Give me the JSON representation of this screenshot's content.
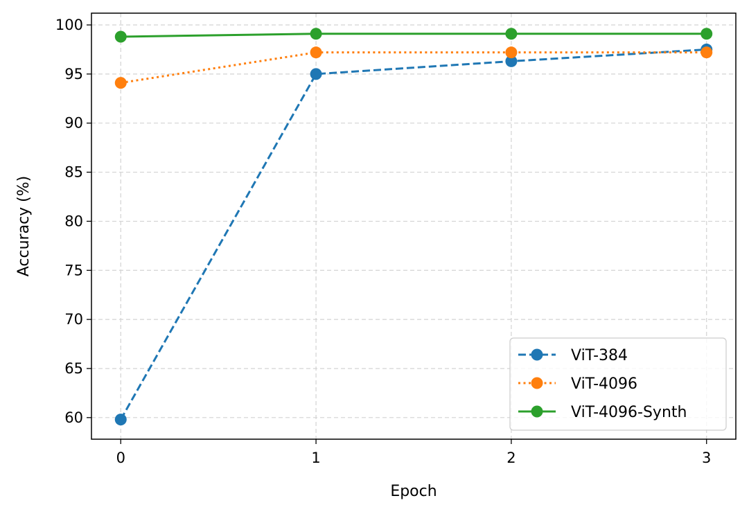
{
  "chart_data": {
    "type": "line",
    "xlabel": "Epoch",
    "ylabel": "Accuracy (%)",
    "x": [
      0,
      1,
      2,
      3
    ],
    "xticks": [
      0,
      1,
      2,
      3
    ],
    "yticks": [
      60,
      65,
      70,
      75,
      80,
      85,
      90,
      95,
      100
    ],
    "xlim": [
      -0.15,
      3.15
    ],
    "ylim": [
      57.8,
      101.2
    ],
    "grid": true,
    "legend_position": "bottom-right",
    "series": [
      {
        "name": "ViT-384",
        "values": [
          59.8,
          95.0,
          96.3,
          97.5
        ],
        "color": "#1f77b4",
        "linestyle": "dashed",
        "marker": "circle"
      },
      {
        "name": "ViT-4096",
        "values": [
          94.1,
          97.2,
          97.2,
          97.2
        ],
        "color": "#ff7f0e",
        "linestyle": "dotted",
        "marker": "circle"
      },
      {
        "name": "ViT-4096-Synth",
        "values": [
          98.8,
          99.1,
          99.1,
          99.1
        ],
        "color": "#2ca02c",
        "linestyle": "solid",
        "marker": "circle"
      }
    ]
  }
}
